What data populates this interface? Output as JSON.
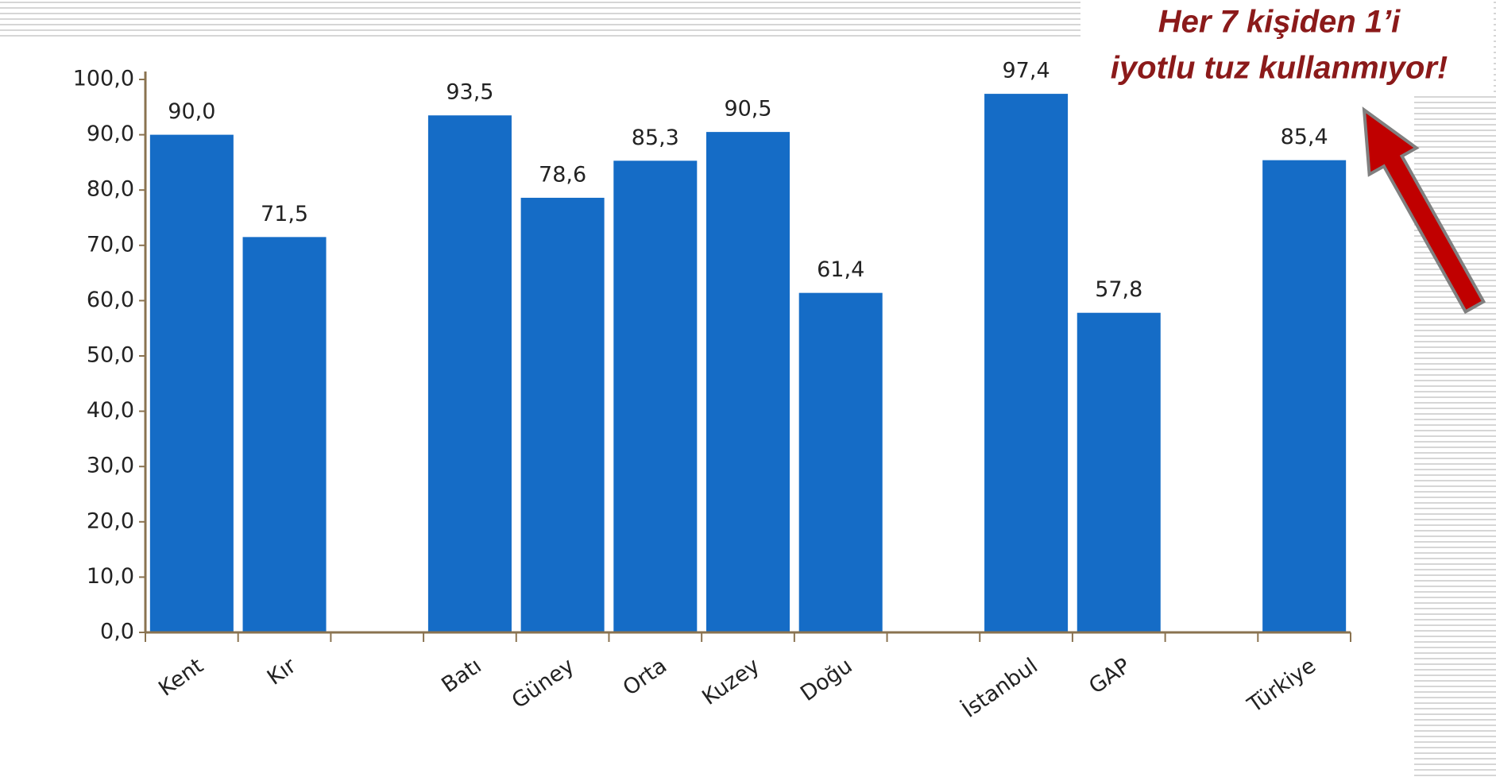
{
  "chart_data": {
    "type": "bar",
    "annotation": [
      "Her 7 kişiden 1’i",
      "iyotlu tuz kullanmıyor!"
    ],
    "categories": [
      "Kent",
      "Kır",
      null,
      "Batı",
      "Güney",
      "Orta",
      "Kuzey",
      "Doğu",
      null,
      "İstanbul",
      "GAP",
      null,
      "Türkiye"
    ],
    "values": [
      90.0,
      71.5,
      null,
      93.5,
      78.6,
      85.3,
      90.5,
      61.4,
      null,
      97.4,
      57.8,
      null,
      85.4
    ],
    "value_labels": [
      "90,0",
      "71,5",
      null,
      "93,5",
      "78,6",
      "85,3",
      "90,5",
      "61,4",
      null,
      "97,4",
      "57,8",
      null,
      "85,4"
    ],
    "color": "#156cc6",
    "ylim": [
      0,
      100
    ],
    "yticks": [
      {
        "value": 0,
        "label": "0,0"
      },
      {
        "value": 10,
        "label": "10,0"
      },
      {
        "value": 20,
        "label": "20,0"
      },
      {
        "value": 30,
        "label": "30,0"
      },
      {
        "value": 40,
        "label": "40,0"
      },
      {
        "value": 50,
        "label": "50,0"
      },
      {
        "value": 60,
        "label": "60,0"
      },
      {
        "value": 70,
        "label": "70,0"
      },
      {
        "value": 80,
        "label": "80,0"
      },
      {
        "value": 90,
        "label": "90,0"
      },
      {
        "value": 100,
        "label": "100,0"
      }
    ],
    "grid": false
  }
}
